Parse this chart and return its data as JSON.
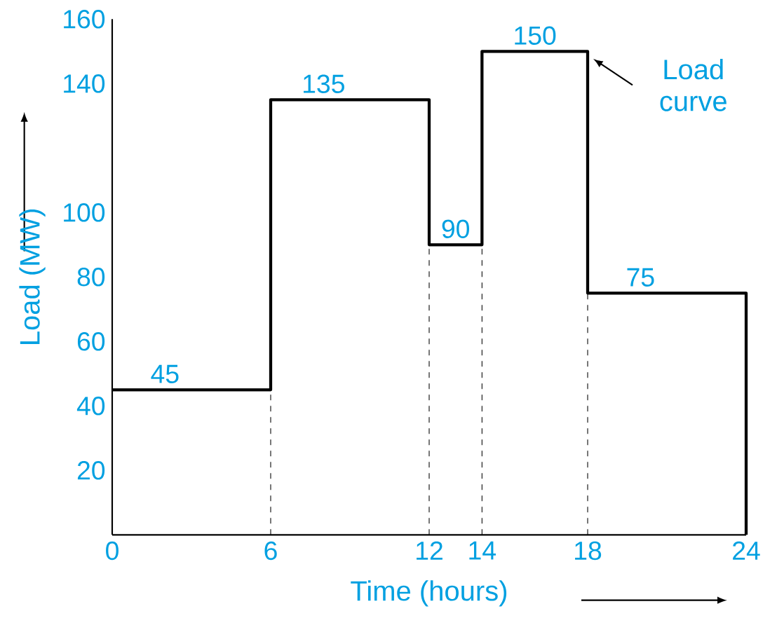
{
  "chart_data": {
    "type": "step",
    "xlabel": "Time (hours)",
    "ylabel": "Load (MW)",
    "x": [
      0,
      6,
      12,
      14,
      18,
      24
    ],
    "series": [
      {
        "color": "#000000",
        "values": [
          45,
          135,
          90,
          150,
          75,
          0
        ],
        "value_labels": [
          "45",
          "135",
          "90",
          "150",
          "75",
          null
        ]
      }
    ],
    "xlim": [
      0,
      24
    ],
    "xticks": [
      0,
      6,
      12,
      14,
      18,
      24
    ],
    "ylim": [
      0,
      160
    ],
    "yticks": [
      20,
      40,
      60,
      80,
      100,
      140,
      160
    ],
    "marker": "none",
    "line_style": "solid",
    "grid": false,
    "ref_lines": [
      {
        "axis": "x",
        "value": 6,
        "line_style": "dashed"
      },
      {
        "axis": "x",
        "value": 12,
        "line_style": "dashed"
      },
      {
        "axis": "x",
        "value": 14,
        "line_style": "dashed"
      },
      {
        "axis": "x",
        "value": 18,
        "line_style": "dashed"
      }
    ],
    "annotations": [
      {
        "text": "Load curve",
        "x": 18,
        "y": 150
      }
    ]
  }
}
